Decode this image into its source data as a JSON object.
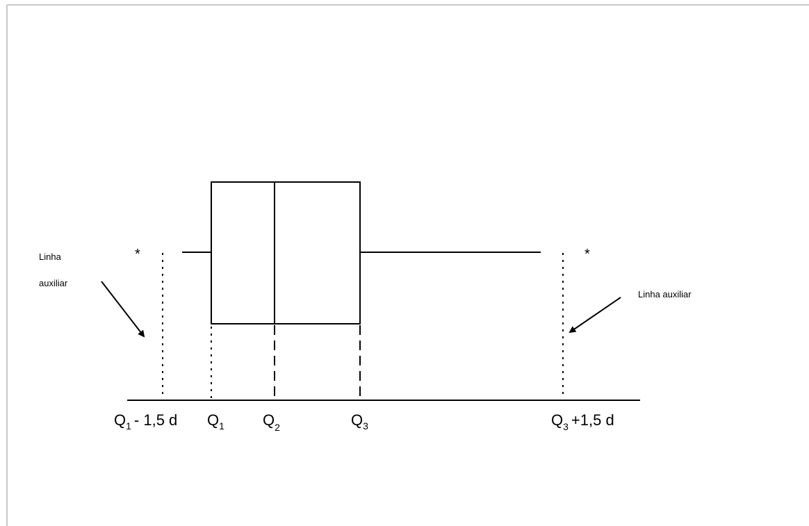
{
  "diagram": {
    "labels": {
      "q1_minus": {
        "base": "Q",
        "sub": "1",
        "rest": "- 1,5 d"
      },
      "q1": {
        "base": "Q",
        "sub": "1"
      },
      "q2": {
        "base": "Q",
        "sub": "2"
      },
      "q3": {
        "base": "Q",
        "sub": "3"
      },
      "q3_plus": {
        "base": "Q",
        "sub": "3",
        "rest": "+1,5 d"
      }
    },
    "annotations": {
      "left_line1": "Linha",
      "left_line2": "auxiliar",
      "right": "Linha auxiliar"
    },
    "outliers": {
      "left_symbol": "*",
      "right_symbol": "*"
    },
    "colors": {
      "stroke": "#000000",
      "background": "#ffffff",
      "frame": "#c8c8c8"
    }
  }
}
